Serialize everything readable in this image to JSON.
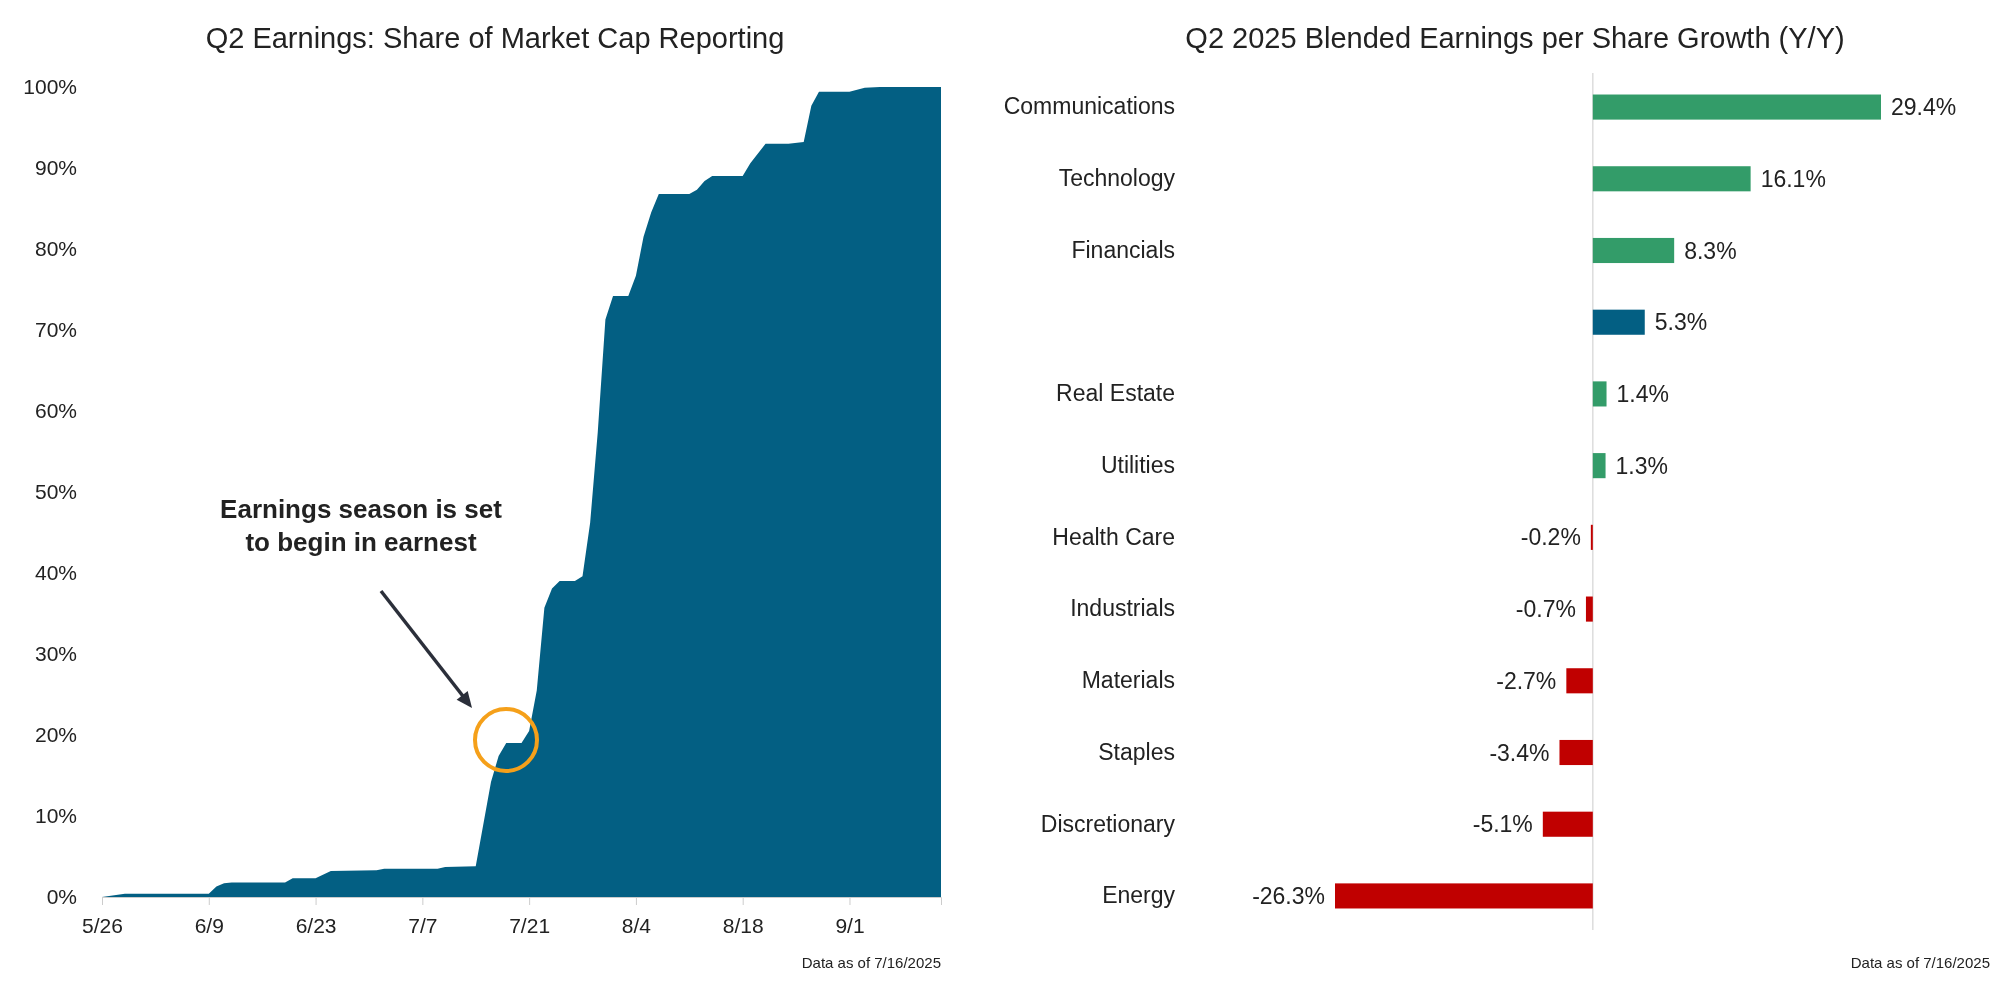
{
  "chart_data": [
    {
      "type": "area",
      "title": "Q2 Earnings: Share of Market Cap Reporting",
      "x": [
        "2025-05-26",
        "2025-05-29",
        "2025-06-09",
        "2025-06-10",
        "2025-06-11",
        "2025-06-12",
        "2025-06-19",
        "2025-06-20",
        "2025-06-23",
        "2025-06-25",
        "2025-07-01",
        "2025-07-02",
        "2025-07-09",
        "2025-07-10",
        "2025-07-14",
        "2025-07-16",
        "2025-07-17",
        "2025-07-18",
        "2025-07-20",
        "2025-07-21",
        "2025-07-22",
        "2025-07-23",
        "2025-07-24",
        "2025-07-25",
        "2025-07-27",
        "2025-07-28",
        "2025-07-29",
        "2025-07-30",
        "2025-07-31",
        "2025-08-01",
        "2025-08-03",
        "2025-08-04",
        "2025-08-05",
        "2025-08-06",
        "2025-08-07",
        "2025-08-11",
        "2025-08-12",
        "2025-08-13",
        "2025-08-14",
        "2025-08-18",
        "2025-08-19",
        "2025-08-21",
        "2025-08-24",
        "2025-08-26",
        "2025-08-27",
        "2025-08-28",
        "2025-09-01",
        "2025-09-03",
        "2025-09-05",
        "2025-09-13"
      ],
      "series": [
        {
          "color": "#035f83",
          "values": [
            0,
            0.4,
            0.4,
            1.3,
            1.7,
            1.8,
            1.8,
            2.3,
            2.3,
            3.2,
            3.3,
            3.5,
            3.5,
            3.7,
            3.8,
            14.2,
            17.4,
            19,
            19,
            20.5,
            25.5,
            35.7,
            38.1,
            39,
            39,
            39.6,
            46.2,
            57.4,
            71.3,
            74.2,
            74.2,
            76.7,
            81.5,
            84.5,
            86.8,
            86.8,
            87.3,
            88.4,
            89,
            89,
            90.6,
            93,
            93,
            93.2,
            97.7,
            99.4,
            99.4,
            99.9,
            100,
            100
          ]
        }
      ],
      "xlim": [
        "2025-05-26",
        "2025-09-13"
      ],
      "xticks": [
        {
          "value": "2025-05-26",
          "label": "5/26"
        },
        {
          "value": "2025-06-09",
          "label": "6/9"
        },
        {
          "value": "2025-06-23",
          "label": "6/23"
        },
        {
          "value": "2025-07-07",
          "label": "7/7"
        },
        {
          "value": "2025-07-21",
          "label": "7/21"
        },
        {
          "value": "2025-08-04",
          "label": "8/4"
        },
        {
          "value": "2025-08-18",
          "label": "8/18"
        },
        {
          "value": "2025-09-01",
          "label": "9/1"
        }
      ],
      "ylim": [
        0,
        100
      ],
      "yticks": [
        {
          "value": 0,
          "label": "0%"
        },
        {
          "value": 10,
          "label": "10%"
        },
        {
          "value": 20,
          "label": "20%"
        },
        {
          "value": 30,
          "label": "30%"
        },
        {
          "value": 40,
          "label": "40%"
        },
        {
          "value": 50,
          "label": "50%"
        },
        {
          "value": 60,
          "label": "60%"
        },
        {
          "value": 70,
          "label": "70%"
        },
        {
          "value": 80,
          "label": "80%"
        },
        {
          "value": 90,
          "label": "90%"
        },
        {
          "value": 100,
          "label": "100%"
        }
      ],
      "annotations": [
        "Earnings season is set to begin in earnest",
        "Data as of 7/16/2025"
      ]
    },
    {
      "type": "bar",
      "orientation": "horizontal",
      "title": "Q2 2025 Blended Earnings per Share Growth (Y/Y)",
      "categories": [
        "Communications",
        "Technology",
        "Financials",
        null,
        "Real Estate",
        "Utilities",
        "Health Care",
        "Industrials",
        "Materials",
        "Staples",
        "Discretionary",
        "Energy"
      ],
      "values": [
        29.4,
        16.1,
        8.3,
        5.3,
        1.4,
        1.3,
        -0.2,
        -0.7,
        -2.7,
        -3.4,
        -5.1,
        -26.3
      ],
      "colors": [
        "#339c69",
        "#339c69",
        "#339c69",
        "#035f83",
        "#339c69",
        "#339c69",
        "#c00000",
        "#c00000",
        "#c00000",
        "#c00000",
        "#c00000",
        "#c00000"
      ],
      "value_labels": [
        "29.4%",
        "16.1%",
        "8.3%",
        "5.3%",
        "1.4%",
        "1.3%",
        "-0.2%",
        "-0.7%",
        "-2.7%",
        "-3.4%",
        "-5.1%",
        "-26.3%"
      ],
      "annotations": [
        "Data as of 7/16/2025"
      ]
    }
  ]
}
